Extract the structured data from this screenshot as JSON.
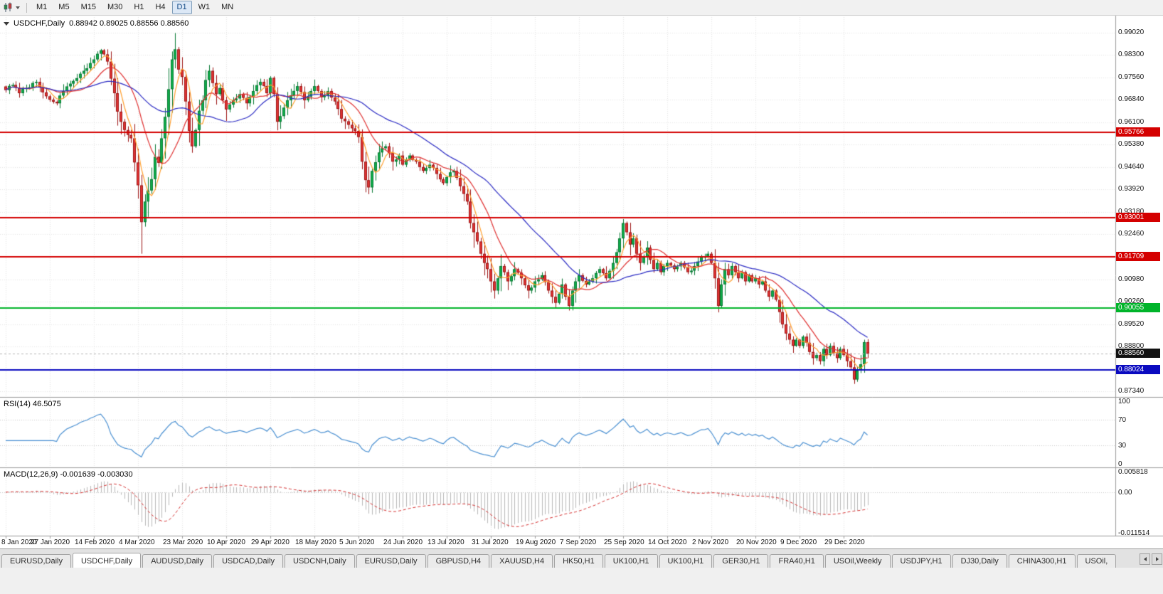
{
  "toolbar": {
    "timeframes": [
      {
        "label": "M1",
        "active": false
      },
      {
        "label": "M5",
        "active": false
      },
      {
        "label": "M15",
        "active": false
      },
      {
        "label": "M30",
        "active": false
      },
      {
        "label": "H1",
        "active": false
      },
      {
        "label": "H4",
        "active": false
      },
      {
        "label": "D1",
        "active": true
      },
      {
        "label": "W1",
        "active": false
      },
      {
        "label": "MN",
        "active": false
      }
    ]
  },
  "icons": {
    "chart_type": "candlestick-chart",
    "dropdown": "caret-down",
    "collapse": "triangle-down",
    "tab_scroll_left": "arrow-left",
    "tab_scroll_right": "arrow-right"
  },
  "chart_header": {
    "symbol": "USDCHF,Daily",
    "ohlc": "0.88942 0.89025 0.88556 0.88560"
  },
  "rsi_panel": {
    "label": "RSI(14) 46.5075",
    "ticks": [
      "100",
      "70",
      "30",
      "0"
    ]
  },
  "macd_panel": {
    "label": "MACD(12,26,9) -0.001639 -0.003030",
    "ticks": [
      "0.005818",
      "0.00",
      "-0.011514"
    ]
  },
  "tabbar": {
    "tabs": [
      {
        "label": "EURUSD,Daily",
        "active": false
      },
      {
        "label": "USDCHF,Daily",
        "active": true
      },
      {
        "label": "AUDUSD,Daily",
        "active": false
      },
      {
        "label": "USDCAD,Daily",
        "active": false
      },
      {
        "label": "USDCNH,Daily",
        "active": false
      },
      {
        "label": "EURUSD,Daily",
        "active": false
      },
      {
        "label": "GBPUSD,H4",
        "active": false
      },
      {
        "label": "XAUUSD,H4",
        "active": false
      },
      {
        "label": "HK50,H1",
        "active": false
      },
      {
        "label": "UK100,H1",
        "active": false
      },
      {
        "label": "UK100,H1",
        "active": false
      },
      {
        "label": "GER30,H1",
        "active": false
      },
      {
        "label": "FRA40,H1",
        "active": false
      },
      {
        "label": "USOil,Weekly",
        "active": false
      },
      {
        "label": "USDJPY,H1",
        "active": false
      },
      {
        "label": "DJ30,Daily",
        "active": false
      },
      {
        "label": "CHINA300,H1",
        "active": false
      },
      {
        "label": "USOil,",
        "active": false
      }
    ]
  },
  "chart_data": {
    "type": "candlestick",
    "symbol": "USDCHF",
    "timeframe": "Daily",
    "last_bar": {
      "open": 0.88942,
      "high": 0.89025,
      "low": 0.88556,
      "close": 0.8856
    },
    "num_bars": 255,
    "price_min": 0.8734,
    "price_max": 0.9902,
    "y_ticks": [
      "0.99020",
      "0.98300",
      "0.97560",
      "0.96840",
      "0.96100",
      "0.95380",
      "0.94640",
      "0.93920",
      "0.93180",
      "0.92460",
      "0.91720",
      "0.90980",
      "0.90260",
      "0.89520",
      "0.88800",
      "0.88060",
      "0.87340"
    ],
    "x_labels": [
      "8 Jan 2020",
      "27 Jan 2020",
      "14 Feb 2020",
      "4 Mar 2020",
      "23 Mar 2020",
      "10 Apr 2020",
      "29 Apr 2020",
      "18 May 2020",
      "5 Jun 2020",
      "24 Jun 2020",
      "13 Jul 2020",
      "31 Jul 2020",
      "19 Aug 2020",
      "7 Sep 2020",
      "25 Sep 2020",
      "14 Oct 2020",
      "2 Nov 2020",
      "20 Nov 2020",
      "9 Dec 2020",
      "29 Dec 2020"
    ],
    "x_label_step": 13,
    "levels": [
      {
        "price": 0.95766,
        "label": "0.95766",
        "color": "#d40000"
      },
      {
        "price": 0.93001,
        "label": "0.93001",
        "color": "#d40000"
      },
      {
        "price": 0.91709,
        "label": "0.91709",
        "color": "#d40000"
      },
      {
        "price": 0.90055,
        "label": "0.90055",
        "color": "#00b42a"
      },
      {
        "price": 0.88024,
        "label": "0.88024",
        "color": "#0a0ac0"
      }
    ],
    "current_price": {
      "price": 0.8856,
      "label": "0.88560",
      "color": "#111111"
    },
    "close_waypoints": [
      [
        0,
        0.9715
      ],
      [
        2,
        0.9732
      ],
      [
        4,
        0.9705
      ],
      [
        6,
        0.9722
      ],
      [
        9,
        0.9742
      ],
      [
        12,
        0.9695
      ],
      [
        15,
        0.9672
      ],
      [
        17,
        0.9712
      ],
      [
        20,
        0.9745
      ],
      [
        23,
        0.9778
      ],
      [
        26,
        0.9815
      ],
      [
        28,
        0.9845
      ],
      [
        30,
        0.9808
      ],
      [
        32,
        0.9705
      ],
      [
        33,
        0.9645
      ],
      [
        35,
        0.9585
      ],
      [
        37,
        0.9558
      ],
      [
        39,
        0.9405
      ],
      [
        40,
        0.9285
      ],
      [
        41,
        0.9352
      ],
      [
        42,
        0.9388
      ],
      [
        43,
        0.9425
      ],
      [
        44,
        0.9498
      ],
      [
        45,
        0.9478
      ],
      [
        46,
        0.9558
      ],
      [
        47,
        0.9628
      ],
      [
        48,
        0.9718
      ],
      [
        49,
        0.9815
      ],
      [
        50,
        0.9848
      ],
      [
        51,
        0.9782
      ],
      [
        52,
        0.9758
      ],
      [
        53,
        0.9678
      ],
      [
        54,
        0.9582
      ],
      [
        55,
        0.9532
      ],
      [
        56,
        0.9585
      ],
      [
        57,
        0.9648
      ],
      [
        58,
        0.9682
      ],
      [
        59,
        0.9748
      ],
      [
        60,
        0.9778
      ],
      [
        61,
        0.9738
      ],
      [
        62,
        0.9702
      ],
      [
        63,
        0.9722
      ],
      [
        64,
        0.9682
      ],
      [
        65,
        0.9652
      ],
      [
        67,
        0.9682
      ],
      [
        69,
        0.9702
      ],
      [
        71,
        0.9672
      ],
      [
        73,
        0.9712
      ],
      [
        75,
        0.9742
      ],
      [
        77,
        0.9705
      ],
      [
        78,
        0.9755
      ],
      [
        79,
        0.9702
      ],
      [
        80,
        0.9612
      ],
      [
        82,
        0.9658
      ],
      [
        84,
        0.9698
      ],
      [
        86,
        0.9728
      ],
      [
        88,
        0.9682
      ],
      [
        90,
        0.9712
      ],
      [
        91,
        0.9728
      ],
      [
        93,
        0.9692
      ],
      [
        95,
        0.9712
      ],
      [
        97,
        0.9678
      ],
      [
        99,
        0.9622
      ],
      [
        101,
        0.9602
      ],
      [
        103,
        0.9582
      ],
      [
        104,
        0.9562
      ],
      [
        105,
        0.9482
      ],
      [
        106,
        0.9422
      ],
      [
        107,
        0.9398
      ],
      [
        108,
        0.9452
      ],
      [
        110,
        0.9512
      ],
      [
        112,
        0.9532
      ],
      [
        114,
        0.9482
      ],
      [
        116,
        0.9502
      ],
      [
        117,
        0.9472
      ],
      [
        119,
        0.9502
      ],
      [
        121,
        0.9482
      ],
      [
        123,
        0.9452
      ],
      [
        125,
        0.9472
      ],
      [
        127,
        0.9442
      ],
      [
        129,
        0.9412
      ],
      [
        130,
        0.9432
      ],
      [
        132,
        0.9452
      ],
      [
        134,
        0.9402
      ],
      [
        136,
        0.9352
      ],
      [
        137,
        0.9282
      ],
      [
        138,
        0.9252
      ],
      [
        139,
        0.9222
      ],
      [
        140,
        0.9182
      ],
      [
        141,
        0.9152
      ],
      [
        142,
        0.9132
      ],
      [
        143,
        0.9092
      ],
      [
        144,
        0.9062
      ],
      [
        145,
        0.9102
      ],
      [
        146,
        0.9142
      ],
      [
        147,
        0.9122
      ],
      [
        148,
        0.9092
      ],
      [
        150,
        0.9132
      ],
      [
        152,
        0.9102
      ],
      [
        154,
        0.9062
      ],
      [
        156,
        0.9092
      ],
      [
        158,
        0.9112
      ],
      [
        160,
        0.9062
      ],
      [
        162,
        0.9022
      ],
      [
        163,
        0.9052
      ],
      [
        164,
        0.9082
      ],
      [
        165,
        0.9042
      ],
      [
        166,
        0.9012
      ],
      [
        167,
        0.9062
      ],
      [
        168,
        0.9092
      ],
      [
        169,
        0.9112
      ],
      [
        171,
        0.9082
      ],
      [
        173,
        0.9102
      ],
      [
        175,
        0.9132
      ],
      [
        177,
        0.9102
      ],
      [
        179,
        0.9152
      ],
      [
        181,
        0.9232
      ],
      [
        182,
        0.9282
      ],
      [
        183,
        0.9252
      ],
      [
        184,
        0.9212
      ],
      [
        185,
        0.9232
      ],
      [
        186,
        0.9182
      ],
      [
        187,
        0.9152
      ],
      [
        188,
        0.9172
      ],
      [
        189,
        0.9202
      ],
      [
        190,
        0.9162
      ],
      [
        191,
        0.9132
      ],
      [
        192,
        0.9152
      ],
      [
        193,
        0.9122
      ],
      [
        194,
        0.9142
      ],
      [
        195,
        0.9152
      ],
      [
        197,
        0.9132
      ],
      [
        199,
        0.9152
      ],
      [
        201,
        0.9122
      ],
      [
        203,
        0.9142
      ],
      [
        205,
        0.9172
      ],
      [
        207,
        0.9182
      ],
      [
        208,
        0.9152
      ],
      [
        209,
        0.9102
      ],
      [
        210,
        0.9012
      ],
      [
        211,
        0.9082
      ],
      [
        212,
        0.9132
      ],
      [
        213,
        0.9112
      ],
      [
        214,
        0.9142
      ],
      [
        215,
        0.9122
      ],
      [
        216,
        0.9102
      ],
      [
        217,
        0.9122
      ],
      [
        218,
        0.9092
      ],
      [
        219,
        0.9112
      ],
      [
        220,
        0.9092
      ],
      [
        221,
        0.9102
      ],
      [
        222,
        0.9082
      ],
      [
        223,
        0.9092
      ],
      [
        224,
        0.9062
      ],
      [
        225,
        0.9042
      ],
      [
        226,
        0.9062
      ],
      [
        227,
        0.9032
      ],
      [
        228,
        0.8992
      ],
      [
        229,
        0.8952
      ],
      [
        230,
        0.8922
      ],
      [
        231,
        0.8902
      ],
      [
        232,
        0.8882
      ],
      [
        233,
        0.8902
      ],
      [
        234,
        0.8882
      ],
      [
        235,
        0.8912
      ],
      [
        236,
        0.8892
      ],
      [
        237,
        0.8862
      ],
      [
        238,
        0.8842
      ],
      [
        239,
        0.8852
      ],
      [
        240,
        0.8832
      ],
      [
        241,
        0.8872
      ],
      [
        242,
        0.8852
      ],
      [
        243,
        0.8882
      ],
      [
        244,
        0.8858
      ],
      [
        245,
        0.8842
      ],
      [
        246,
        0.8872
      ],
      [
        247,
        0.8852
      ],
      [
        248,
        0.8832
      ],
      [
        249,
        0.8812
      ],
      [
        250,
        0.8772
      ],
      [
        251,
        0.8802
      ],
      [
        252,
        0.8822
      ],
      [
        253,
        0.8894
      ],
      [
        254,
        0.8856
      ]
    ],
    "wick_overrides": {
      "lows": [
        [
          40,
          0.9182
        ],
        [
          55,
          0.9511
        ],
        [
          107,
          0.9376
        ],
        [
          144,
          0.9036
        ],
        [
          162,
          0.9006
        ],
        [
          166,
          0.8997
        ],
        [
          210,
          0.8991
        ],
        [
          240,
          0.8821
        ],
        [
          250,
          0.8758
        ]
      ],
      "highs": [
        [
          28,
          0.9849
        ],
        [
          50,
          0.9901
        ],
        [
          60,
          0.9797
        ],
        [
          182,
          0.9295
        ],
        [
          253,
          0.8902
        ]
      ]
    },
    "moving_averages": [
      {
        "name": "fast",
        "period": 5,
        "color": "#ff9f2e"
      },
      {
        "name": "medium",
        "period": 13,
        "color": "#e03030"
      },
      {
        "name": "slow",
        "period": 34,
        "color": "#2b2bc4"
      }
    ],
    "rsi": {
      "period": 14,
      "value": 46.5075,
      "color": "#4a90d2",
      "range": [
        0,
        100
      ],
      "guides": [
        70,
        30
      ]
    },
    "macd": {
      "fast": 12,
      "slow": 26,
      "signal": 9,
      "macd_value": -0.001639,
      "signal_value": -0.00303,
      "range": [
        -0.011514,
        0.005818
      ],
      "histogram_color": "#b9b9b9",
      "signal_color": "#d63030"
    },
    "colors": {
      "up": "#0fae4b",
      "up_border": "#077a33",
      "down": "#e23434",
      "down_border": "#9d1414",
      "grid": "#e6e6e6",
      "separator": "#9a9a9a",
      "current_line": "#b5b5b5"
    }
  }
}
